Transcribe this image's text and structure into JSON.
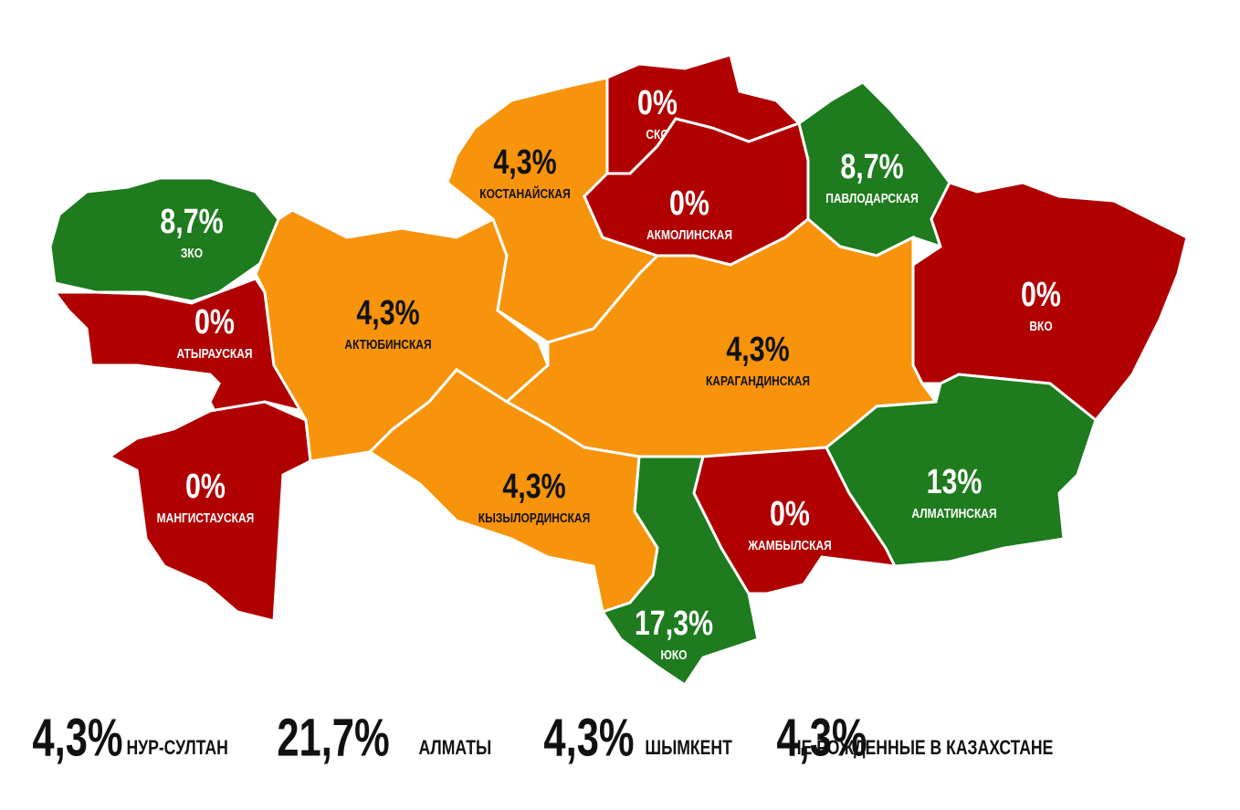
{
  "regions": [
    {
      "name": "ЗКО",
      "value": "8,7%",
      "color": "#1e7b1e"
    },
    {
      "name": "АТЫРАУСКАЯ",
      "value": "0%",
      "color": "#b00000"
    },
    {
      "name": "МАНГИСТАУСКАЯ",
      "value": "0%",
      "color": "#b00000"
    },
    {
      "name": "АКТЮБИНСКАЯ",
      "value": "4,3%",
      "color": "#f7940c"
    },
    {
      "name": "КОСТАНАЙСКАЯ",
      "value": "4,3%",
      "color": "#f7940c"
    },
    {
      "name": "СКО",
      "value": "0%",
      "color": "#b00000"
    },
    {
      "name": "АКМОЛИНСКАЯ",
      "value": "0%",
      "color": "#b00000"
    },
    {
      "name": "ПАВЛОДАРСКАЯ",
      "value": "8,7%",
      "color": "#1e7b1e"
    },
    {
      "name": "ВКО",
      "value": "0%",
      "color": "#b00000"
    },
    {
      "name": "КАРАГАНДИНСКАЯ",
      "value": "4,3%",
      "color": "#f7940c"
    },
    {
      "name": "КЫЗЫЛОРДИНСКАЯ",
      "value": "4,3%",
      "color": "#f7940c"
    },
    {
      "name": "ЮКО",
      "value": "17,3%",
      "color": "#1e7b1e"
    },
    {
      "name": "ЖАМБЫЛСКАЯ",
      "value": "0%",
      "color": "#b00000"
    },
    {
      "name": "АЛМАТИНСКАЯ",
      "value": "13%",
      "color": "#1e7b1e"
    }
  ],
  "cities": [
    {
      "value": "4,3%",
      "name": "НУР-СУЛТАН"
    },
    {
      "value": "21,7%",
      "name": "АЛМАТЫ"
    },
    {
      "value": "4,3%",
      "name": "ШЫМКЕНТ"
    },
    {
      "value": "4,3%",
      "name": "НЕ РОЖДЕННЫЕ В КАЗАХСТАНЕ"
    }
  ]
}
